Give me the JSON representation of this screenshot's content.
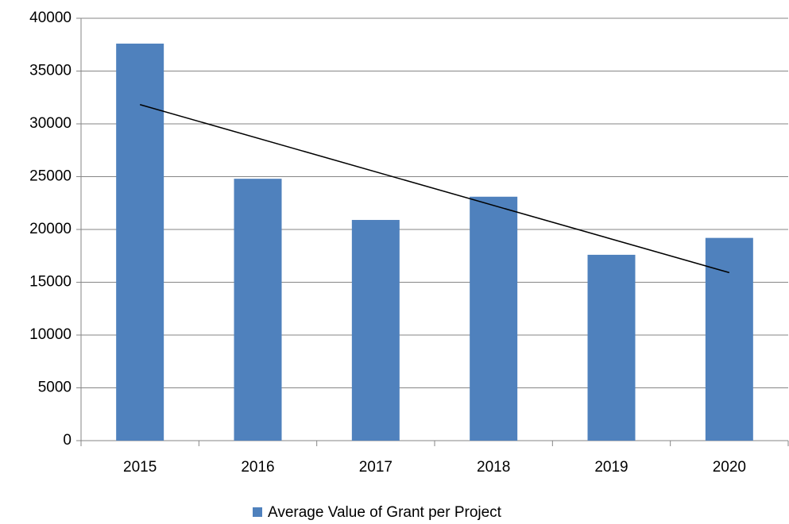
{
  "chart_data": {
    "type": "bar",
    "categories": [
      "2015",
      "2016",
      "2017",
      "2018",
      "2019",
      "2020"
    ],
    "series": [
      {
        "name": "Average Value of Grant per Project",
        "color": "#4f81bd",
        "values": [
          37600,
          24800,
          20900,
          23100,
          17600,
          19200
        ]
      }
    ],
    "trendline": "linear",
    "ylim": [
      0,
      40000
    ],
    "yticks": [
      0,
      5000,
      10000,
      15000,
      20000,
      25000,
      30000,
      35000,
      40000
    ],
    "grid": true,
    "legend": "bottom"
  }
}
